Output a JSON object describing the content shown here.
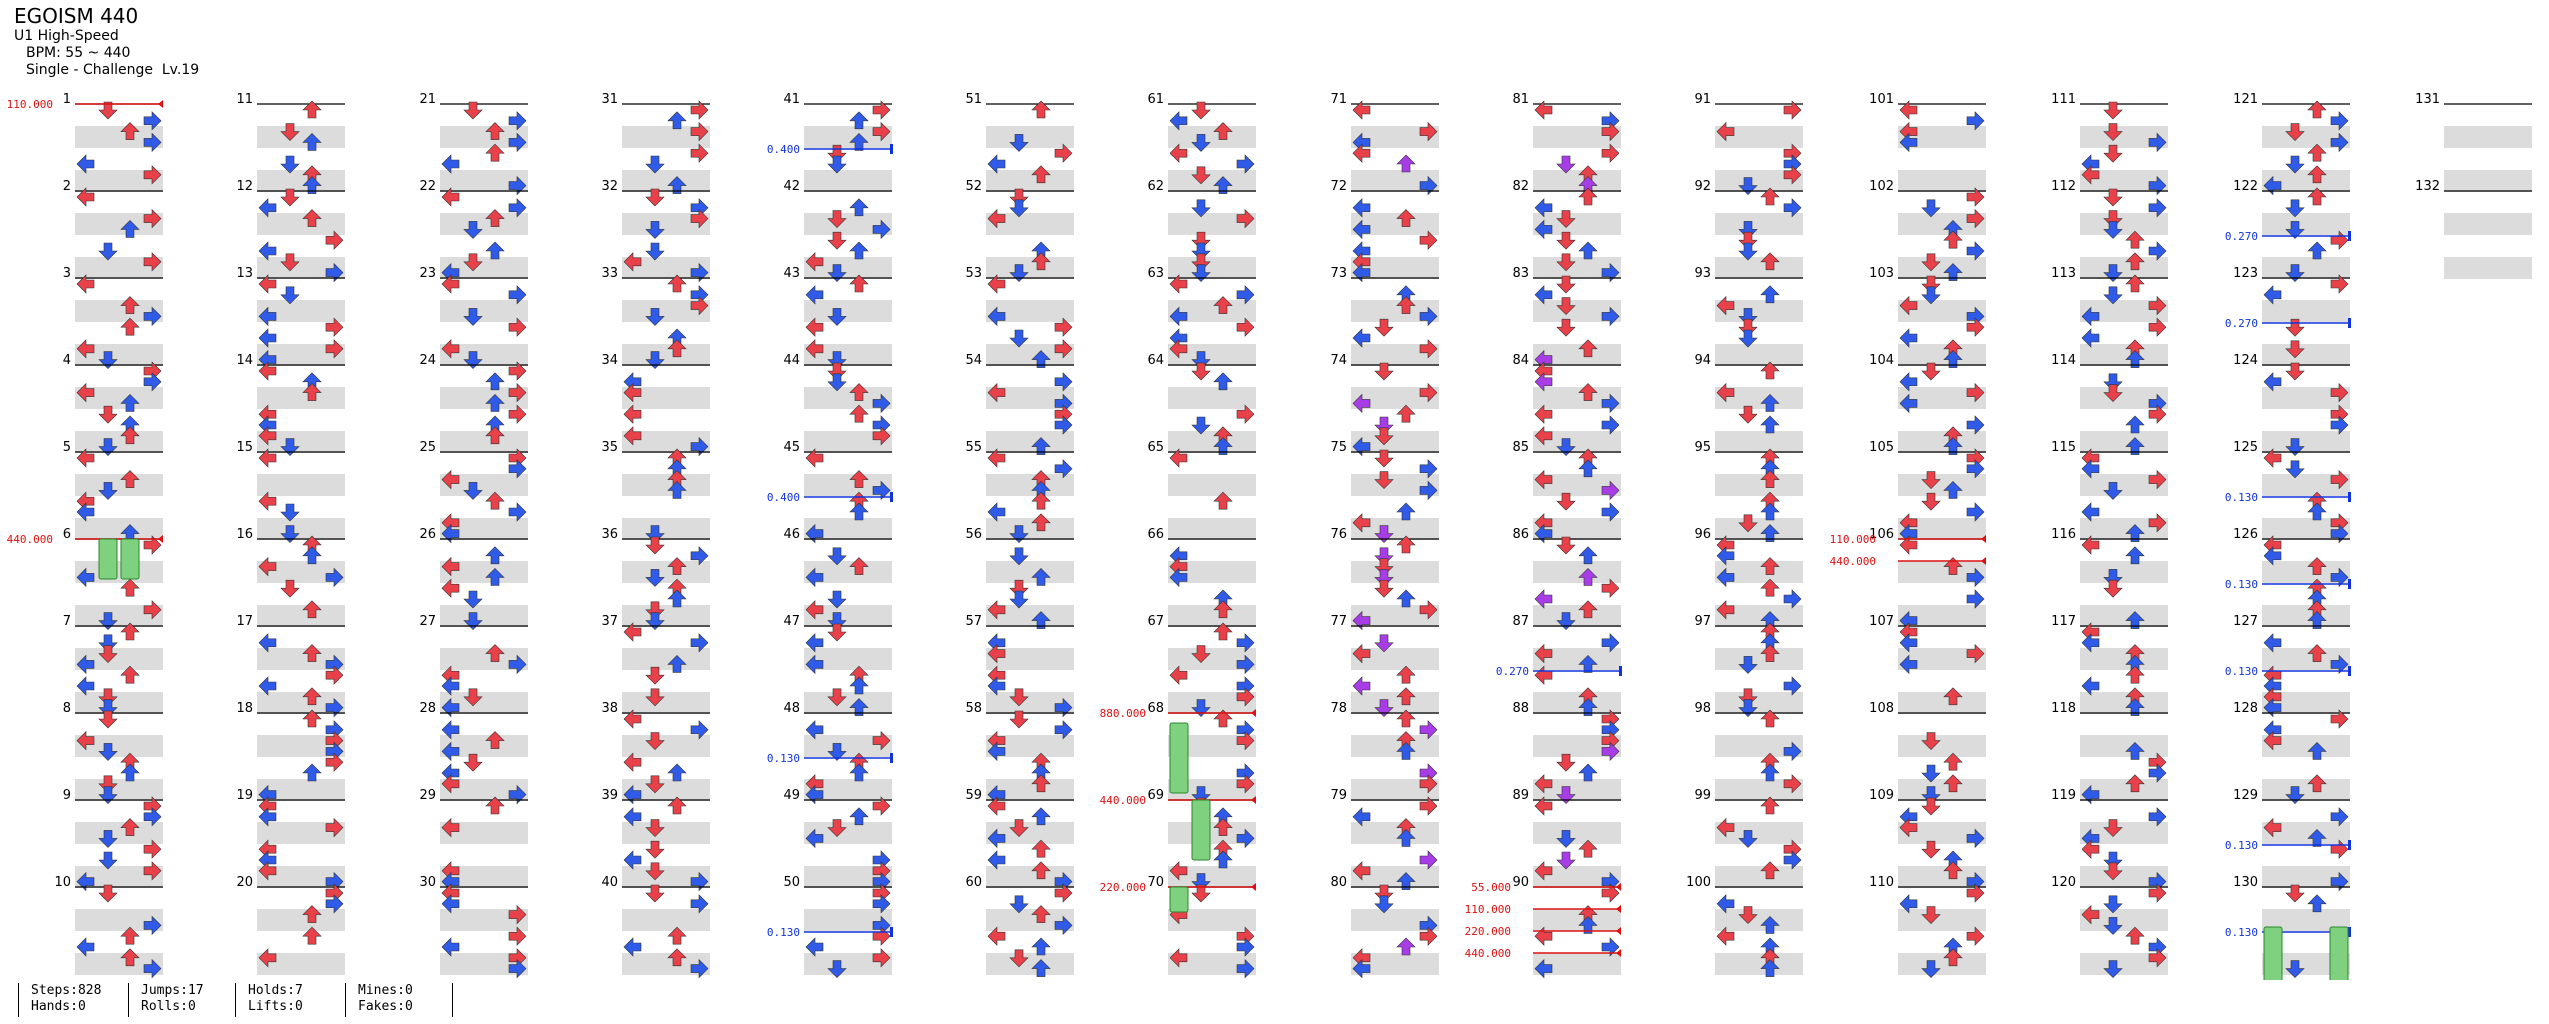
{
  "header": {
    "title": "EGOISM 440",
    "speed_mode": "U1 High-Speed",
    "bpm": "BPM: 55 ~ 440",
    "difficulty": "Single - Challenge  Lv.19"
  },
  "colors": {
    "quarter": "#e8414a",
    "eighth": "#2f5be8",
    "sixteenth": "#a83ce6",
    "twelfth": "#ffdd33",
    "twentyfourth": "#f0a040",
    "bpm_marker": "#dd1111",
    "stop_marker": "#1133dd",
    "hold": "#7fd07f",
    "band": "#dcdcdc"
  },
  "measures": {
    "first": 1,
    "last": 132,
    "per_column": 10,
    "columns": 14
  },
  "bpm_changes": [
    {
      "measure": 1,
      "value": "110.000"
    },
    {
      "measure": 6,
      "value": "440.000"
    },
    {
      "measure": 68,
      "value": "880.000"
    },
    {
      "measure": 69,
      "value": "440.000"
    },
    {
      "measure": 70,
      "value": "220.000"
    },
    {
      "measure": 90,
      "value": "55.000"
    },
    {
      "measure": 90,
      "value": "110.000"
    },
    {
      "measure": 90,
      "value": "220.000"
    },
    {
      "measure": 90,
      "value": "440.000"
    },
    {
      "measure": 106,
      "value": "110.000"
    },
    {
      "measure": 106,
      "value": "440.000"
    }
  ],
  "stops": [
    {
      "measure": 41,
      "value": "0.400"
    },
    {
      "measure": 45,
      "value": "0.400"
    },
    {
      "measure": 48,
      "value": "0.130"
    },
    {
      "measure": 50,
      "value": "0.130"
    },
    {
      "measure": 87,
      "value": "0.270"
    },
    {
      "measure": 122,
      "value": "0.270"
    },
    {
      "measure": 123,
      "value": "0.270"
    },
    {
      "measure": 125,
      "value": "0.130"
    },
    {
      "measure": 126,
      "value": "0.130"
    },
    {
      "measure": 127,
      "value": "0.130"
    },
    {
      "measure": 129,
      "value": "0.130"
    },
    {
      "measure": 130,
      "value": "0.130"
    }
  ],
  "footer": {
    "steps": "Steps:828",
    "hands": "Hands:0",
    "jumps": "Jumps:17",
    "rolls": "Rolls:0",
    "holds": "Holds:7",
    "lifts": "Lifts:0",
    "mines": "Mines:0",
    "fakes": "Fakes:0"
  }
}
